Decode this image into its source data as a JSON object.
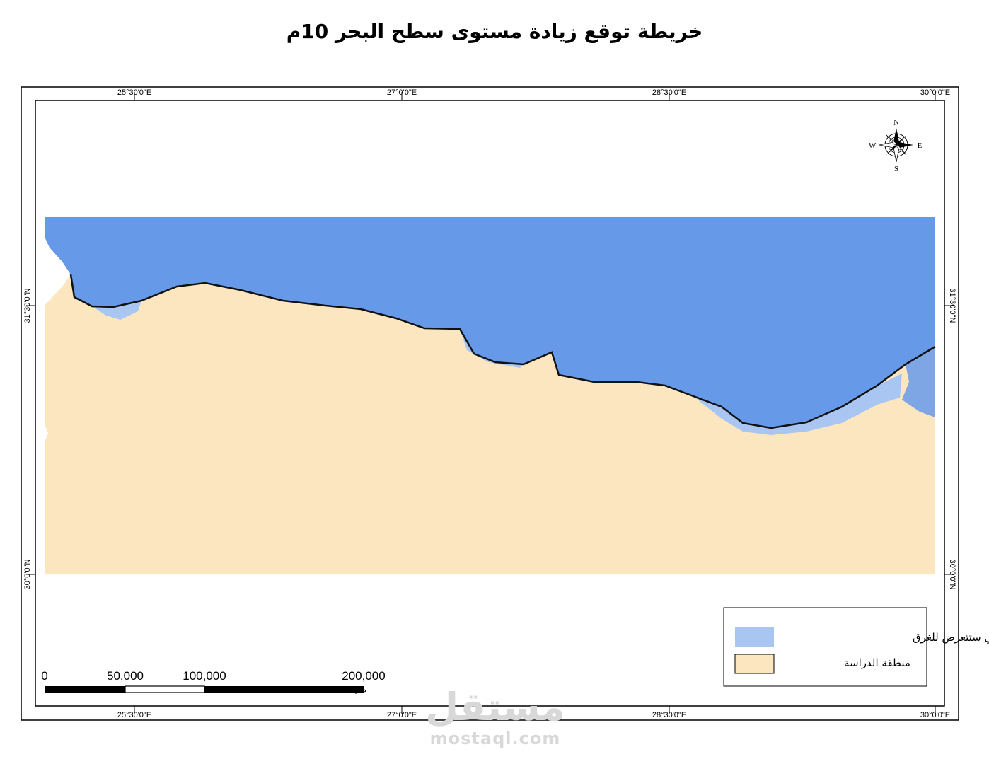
{
  "title": "خريطة توقع زيادة مستوى سطح البحر 10م",
  "graticule": {
    "longitude_labels": [
      "25°30'0\"E",
      "27°0'0\"E",
      "28°30'0\"E",
      "30°0'0\"E"
    ],
    "latitude_labels": [
      "31°30'0\"N",
      "30°0'0\"N"
    ]
  },
  "compass": {
    "n": "N",
    "s": "S",
    "e": "E",
    "w": "W"
  },
  "legend": {
    "items": [
      {
        "label": "المناطق التي ستتعرض للغرق",
        "color": "#a9c6f2"
      },
      {
        "label": "منطقة الدراسة",
        "color": "#fce6c0"
      }
    ]
  },
  "scale_bar": {
    "labels": [
      "0",
      "50,000",
      "100,000",
      "200,000"
    ],
    "unit": "متر"
  },
  "colors": {
    "sea": "#6699e8",
    "land": "#fce6c0",
    "flood_zone": "#a9c6f2",
    "coastline": "#111111"
  },
  "watermark": {
    "logo": "مستقل",
    "url": "mostaql.com"
  }
}
